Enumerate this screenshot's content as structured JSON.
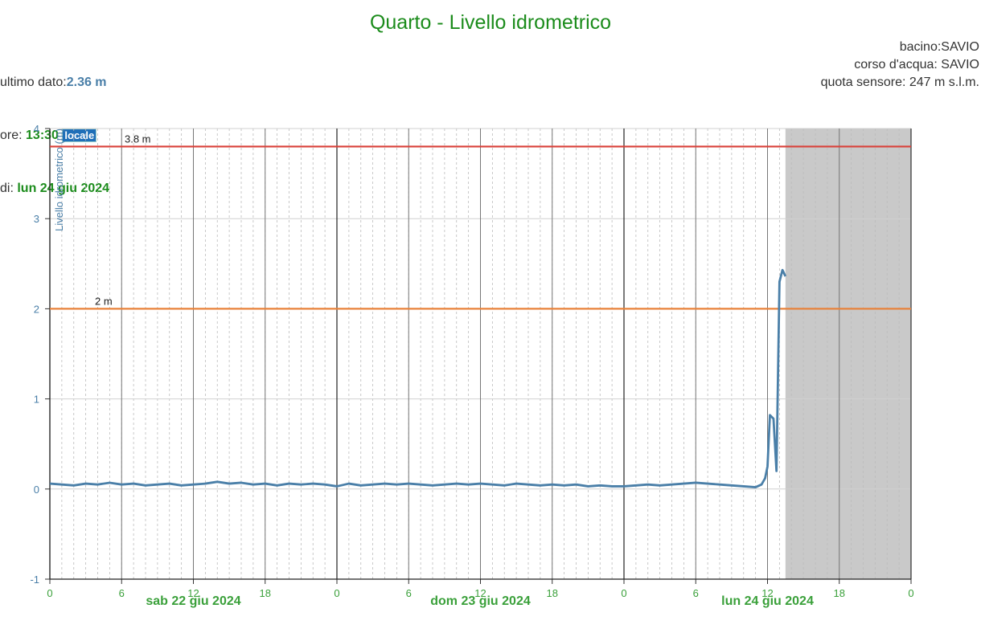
{
  "chart_data": {
    "type": "line",
    "title": "Quarto - Livello idrometrico",
    "info": {
      "last_label": "ultimo dato:",
      "last_value": "2.36 m",
      "time_label": "ore: ",
      "time_value": "13:30",
      "time_zone": "locale",
      "date_label": "di: ",
      "date_value": "lun 24 giu 2024",
      "basin": "bacino:SAVIO",
      "river": "corso d'acqua: SAVIO",
      "altitude": "quota sensore: 247 m s.l.m."
    },
    "ylabel": "Livello idrometrico (m)",
    "ylim": [
      -1,
      4
    ],
    "yticks": [
      -1,
      0,
      1,
      2,
      3,
      4
    ],
    "xlim": [
      0,
      72
    ],
    "xticks": [
      0,
      6,
      12,
      18,
      {
        "value": 24,
        "label": "0"
      },
      {
        "value": 30,
        "label": "6"
      },
      {
        "value": 36,
        "label": "12"
      },
      {
        "value": 42,
        "label": "18"
      },
      {
        "value": 48,
        "label": "0"
      },
      {
        "value": 54,
        "label": "6"
      },
      {
        "value": 60,
        "label": "12"
      },
      {
        "value": 66,
        "label": "18"
      },
      {
        "value": 72,
        "label": "0"
      }
    ],
    "day_labels": [
      "sab 22 giu 2024",
      "dom 23 giu 2024",
      "lun 24 giu 2024"
    ],
    "thresholds": [
      {
        "value": 3.8,
        "label": "3.8 m",
        "color": "#d9413a"
      },
      {
        "value": 2,
        "label": "2 m",
        "color": "#e8823a"
      }
    ],
    "shaded_from": 61.5,
    "grid": true,
    "color": "#4a7fa8",
    "x": [
      0,
      1,
      2,
      3,
      4,
      5,
      6,
      7,
      8,
      9,
      10,
      11,
      12,
      13,
      14,
      15,
      16,
      17,
      18,
      19,
      20,
      21,
      22,
      23,
      24,
      25,
      26,
      27,
      28,
      29,
      30,
      31,
      32,
      33,
      34,
      35,
      36,
      37,
      38,
      39,
      40,
      41,
      42,
      43,
      44,
      45,
      46,
      47,
      48,
      49,
      50,
      51,
      52,
      53,
      54,
      55,
      56,
      57,
      58,
      59,
      59.5,
      59.8,
      60,
      60.2,
      60.5,
      60.75,
      61,
      61.25,
      61.5
    ],
    "values": [
      0.06,
      0.05,
      0.04,
      0.06,
      0.05,
      0.07,
      0.05,
      0.06,
      0.04,
      0.05,
      0.06,
      0.04,
      0.05,
      0.06,
      0.08,
      0.06,
      0.07,
      0.05,
      0.06,
      0.04,
      0.06,
      0.05,
      0.06,
      0.05,
      0.03,
      0.06,
      0.04,
      0.05,
      0.06,
      0.05,
      0.06,
      0.05,
      0.04,
      0.05,
      0.06,
      0.05,
      0.06,
      0.05,
      0.04,
      0.06,
      0.05,
      0.04,
      0.05,
      0.04,
      0.05,
      0.03,
      0.04,
      0.03,
      0.03,
      0.04,
      0.05,
      0.04,
      0.05,
      0.06,
      0.07,
      0.06,
      0.05,
      0.04,
      0.03,
      0.02,
      0.05,
      0.12,
      0.25,
      0.82,
      0.78,
      0.2,
      2.3,
      2.43,
      2.36
    ]
  }
}
